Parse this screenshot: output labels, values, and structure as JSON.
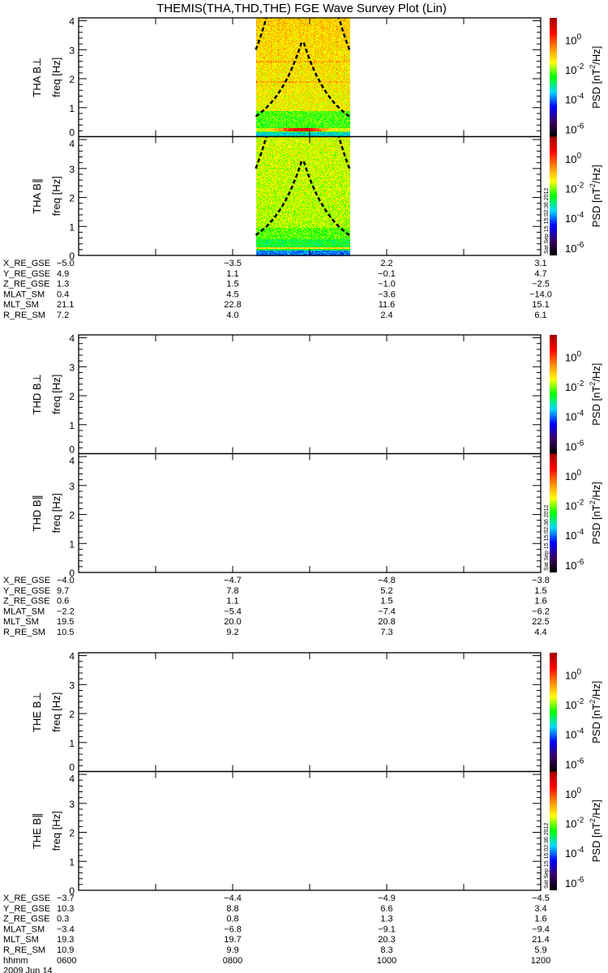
{
  "chart_data": {
    "type": "heatmap",
    "title": "THEMIS(THA,THD,THE) FGE Wave Survey Plot (Lin)",
    "xlabel": "hhmm",
    "date_label": "2009 Jun 14",
    "x_range": [
      "0600",
      "1200"
    ],
    "x_tick_labels": [
      "0600",
      "0800",
      "1000",
      "1200"
    ],
    "creation_stamp": "Sat Sep 15 15:02:36 2012",
    "colorbar": {
      "label": "PSD [nT²/Hz]",
      "label_main": "PSD ",
      "label_unit": "[nT",
      "label_sup": "2",
      "label_tail": "/Hz]",
      "scale": "log",
      "range_exponents": [
        -6.5,
        1.5
      ],
      "tick_exponents": [
        "0",
        "-2",
        "-4",
        "-6"
      ],
      "tick_base": "10",
      "colormap": [
        "#000000",
        "#3a0066",
        "#0000ff",
        "#00d8ff",
        "#00ff00",
        "#ffff00",
        "#ff8800",
        "#ff0000",
        "#a00000"
      ]
    },
    "probes": [
      {
        "name": "THA",
        "panels": [
          {
            "label": "THA B⊥",
            "ylabel": "freq [Hz]",
            "yrange": [
              0,
              4.1
            ],
            "y_ticks": [
              "0",
              "1",
              "2",
              "3",
              "4"
            ],
            "has_data": true,
            "data_time_range": [
              "0818",
              "0931"
            ]
          },
          {
            "label": "THA B∥",
            "ylabel": "freq [Hz]",
            "yrange": [
              0,
              4.1
            ],
            "y_ticks": [
              "0",
              "1",
              "2",
              "3",
              "4"
            ],
            "has_data": true,
            "data_time_range": [
              "0818",
              "0931"
            ]
          }
        ],
        "ephemeris": [
          {
            "label": "X_RE_GSE",
            "values": [
              "-5.0",
              "-3.5",
              "2.2",
              "3.1"
            ]
          },
          {
            "label": "Y_RE_GSE",
            "values": [
              "4.9",
              "1.1",
              "-0.1",
              "4.7"
            ]
          },
          {
            "label": "Z_RE_GSE",
            "values": [
              "1.3",
              "1.5",
              "-1.0",
              "-2.5"
            ]
          },
          {
            "label": "MLAT_SM",
            "values": [
              "0.4",
              "4.5",
              "-3.6",
              "-14.0"
            ]
          },
          {
            "label": "MLT_SM",
            "values": [
              "21.1",
              "22.8",
              "11.6",
              "15.1"
            ]
          },
          {
            "label": "R_RE_SM",
            "values": [
              "7.2",
              "4.0",
              "2.4",
              "6.1"
            ]
          }
        ]
      },
      {
        "name": "THD",
        "panels": [
          {
            "label": "THD B⊥",
            "ylabel": "freq [Hz]",
            "yrange": [
              0,
              4.1
            ],
            "y_ticks": [
              "0",
              "1",
              "2",
              "3",
              "4"
            ],
            "has_data": false
          },
          {
            "label": "THD B∥",
            "ylabel": "freq [Hz]",
            "yrange": [
              0,
              4.1
            ],
            "y_ticks": [
              "0",
              "1",
              "2",
              "3",
              "4"
            ],
            "has_data": false
          }
        ],
        "ephemeris": [
          {
            "label": "X_RE_GSE",
            "values": [
              "-4.0",
              "-4.7",
              "-4.8",
              "-3.8"
            ]
          },
          {
            "label": "Y_RE_GSE",
            "values": [
              "9.7",
              "7.8",
              "5.2",
              "1.5"
            ]
          },
          {
            "label": "Z_RE_GSE",
            "values": [
              "0.6",
              "1.1",
              "1.5",
              "1.6"
            ]
          },
          {
            "label": "MLAT_SM",
            "values": [
              "-2.2",
              "-5.4",
              "-7.4",
              "-6.2"
            ]
          },
          {
            "label": "MLT_SM",
            "values": [
              "19.5",
              "20.0",
              "20.8",
              "22.5"
            ]
          },
          {
            "label": "R_RE_SM",
            "values": [
              "10.5",
              "9.2",
              "7.3",
              "4.4"
            ]
          }
        ]
      },
      {
        "name": "THE",
        "panels": [
          {
            "label": "THE B⊥",
            "ylabel": "freq [Hz]",
            "yrange": [
              0,
              4.1
            ],
            "y_ticks": [
              "0",
              "1",
              "2",
              "3",
              "4"
            ],
            "has_data": false
          },
          {
            "label": "THE B∥",
            "ylabel": "freq [Hz]",
            "yrange": [
              0,
              4.1
            ],
            "y_ticks": [
              "0",
              "1",
              "2",
              "3",
              "4"
            ],
            "has_data": false
          }
        ],
        "ephemeris": [
          {
            "label": "X_RE_GSE",
            "values": [
              "-3.7",
              "-4.4",
              "-4.9",
              "-4.5"
            ]
          },
          {
            "label": "Y_RE_GSE",
            "values": [
              "10.3",
              "8.8",
              "6.6",
              "3.4"
            ]
          },
          {
            "label": "Z_RE_GSE",
            "values": [
              "0.3",
              "0.8",
              "1.3",
              "1.6"
            ]
          },
          {
            "label": "MLAT_SM",
            "values": [
              "-3.4",
              "-6.8",
              "-9.1",
              "-9.4"
            ]
          },
          {
            "label": "MLT_SM",
            "values": [
              "19.3",
              "19.7",
              "20.3",
              "21.4"
            ]
          },
          {
            "label": "R_RE_SM",
            "values": [
              "10.9",
              "9.9",
              "8.3",
              "5.9"
            ]
          }
        ]
      }
    ]
  }
}
